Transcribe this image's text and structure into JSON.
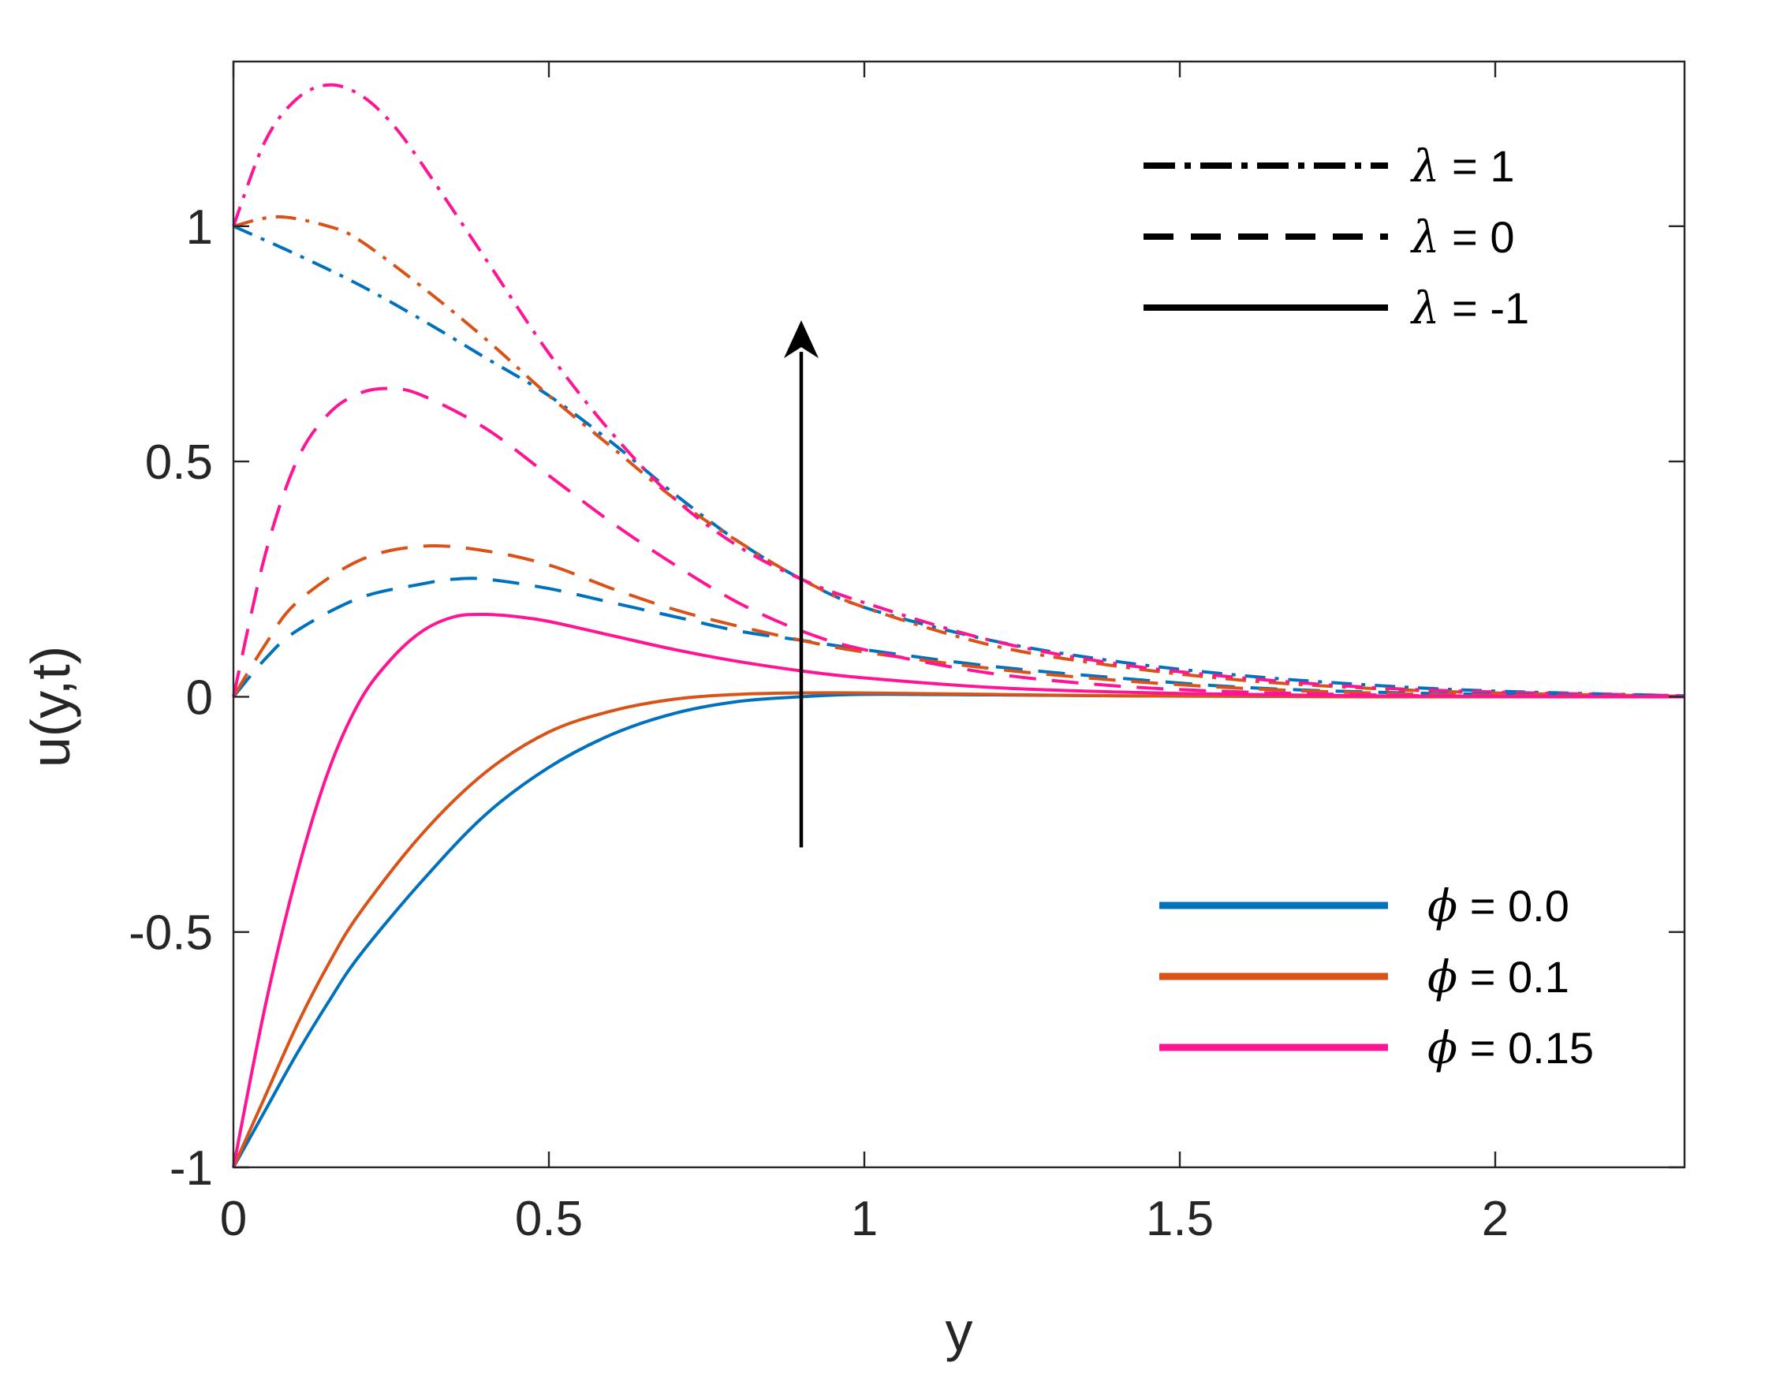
{
  "chart_data": {
    "type": "line",
    "xlabel": "y",
    "ylabel": "u(y,t)",
    "xlim": [
      0,
      2.3
    ],
    "ylim": [
      -1,
      1.35
    ],
    "xticks": [
      0,
      0.5,
      1,
      1.5,
      2
    ],
    "xtick_labels": [
      "0",
      "0.5",
      "1",
      "1.5",
      "2"
    ],
    "yticks": [
      -1,
      -0.5,
      0,
      0.5,
      1
    ],
    "ytick_labels": [
      "-1",
      "-0.5",
      "0",
      "0.5",
      "1"
    ],
    "grid": false,
    "box": true,
    "colors": {
      "phi_0": "#0072BD",
      "phi_01": "#D95319",
      "phi_015": "#FF1493",
      "axis": "#262626",
      "annotation": "#000000"
    },
    "legend_lambda": {
      "placement": "top-right",
      "entries": [
        {
          "label": "λ = 1",
          "symbol": "λ",
          "rest": " = 1",
          "style": "dash-dot"
        },
        {
          "label": "λ = 0",
          "symbol": "λ",
          "rest": " = 0",
          "style": "dashed"
        },
        {
          "label": "λ = -1",
          "symbol": "λ",
          "rest": " = -1",
          "style": "solid"
        }
      ]
    },
    "legend_phi": {
      "placement": "bottom-right",
      "entries": [
        {
          "label": "ϕ = 0.0",
          "symbol": "ϕ",
          "rest": " = 0.0",
          "color": "#0072BD"
        },
        {
          "label": "ϕ = 0.1",
          "symbol": "ϕ",
          "rest": " = 0.1",
          "color": "#D95319"
        },
        {
          "label": "ϕ = 0.15",
          "symbol": "ϕ",
          "rest": " = 0.15",
          "color": "#FF1493"
        }
      ]
    },
    "annotation_arrow": {
      "x": 0.9,
      "y_start": -0.32,
      "y_end": 0.8
    },
    "series": [
      {
        "phi": "0.0",
        "lambda": "1",
        "style": "dash-dot",
        "color": "#0072BD",
        "x": [
          0,
          0.1,
          0.2,
          0.3,
          0.4,
          0.5,
          0.6,
          0.7,
          0.8,
          0.9,
          1.0,
          1.2,
          1.4,
          1.6,
          1.8,
          2.0,
          2.3
        ],
        "y": [
          1.0,
          0.94,
          0.875,
          0.8,
          0.72,
          0.64,
          0.54,
          0.43,
          0.33,
          0.25,
          0.19,
          0.12,
          0.075,
          0.045,
          0.025,
          0.012,
          0.002
        ]
      },
      {
        "phi": "0.1",
        "lambda": "1",
        "style": "dash-dot",
        "color": "#D95319",
        "x": [
          0,
          0.07,
          0.15,
          0.2,
          0.3,
          0.4,
          0.5,
          0.6,
          0.7,
          0.8,
          0.9,
          1.0,
          1.2,
          1.4,
          1.6,
          1.8,
          2.0,
          2.3
        ],
        "y": [
          1.0,
          1.02,
          1.0,
          0.97,
          0.87,
          0.76,
          0.64,
          0.53,
          0.42,
          0.33,
          0.25,
          0.19,
          0.11,
          0.065,
          0.035,
          0.018,
          0.008,
          0.001
        ]
      },
      {
        "phi": "0.15",
        "lambda": "1",
        "style": "dash-dot",
        "color": "#FF1493",
        "x": [
          0,
          0.05,
          0.1,
          0.15,
          0.2,
          0.25,
          0.3,
          0.4,
          0.5,
          0.6,
          0.7,
          0.8,
          0.9,
          1.0,
          1.2,
          1.4,
          1.6,
          1.8,
          2.0,
          2.3
        ],
        "y": [
          1.0,
          1.18,
          1.27,
          1.3,
          1.28,
          1.22,
          1.13,
          0.93,
          0.73,
          0.56,
          0.42,
          0.32,
          0.25,
          0.2,
          0.12,
          0.07,
          0.04,
          0.02,
          0.01,
          0.002
        ]
      },
      {
        "phi": "0.0",
        "lambda": "0",
        "style": "dashed",
        "color": "#0072BD",
        "x": [
          0,
          0.05,
          0.1,
          0.2,
          0.3,
          0.35,
          0.4,
          0.5,
          0.6,
          0.7,
          0.8,
          0.9,
          1.0,
          1.2,
          1.4,
          1.6,
          1.8,
          2.0,
          2.3
        ],
        "y": [
          0,
          0.08,
          0.14,
          0.21,
          0.24,
          0.25,
          0.25,
          0.23,
          0.2,
          0.17,
          0.14,
          0.12,
          0.1,
          0.065,
          0.04,
          0.02,
          0.01,
          0.005,
          0.001
        ]
      },
      {
        "phi": "0.1",
        "lambda": "0",
        "style": "dashed",
        "color": "#D95319",
        "x": [
          0,
          0.05,
          0.1,
          0.2,
          0.3,
          0.4,
          0.5,
          0.6,
          0.7,
          0.8,
          0.9,
          1.0,
          1.2,
          1.4,
          1.6,
          1.8,
          2.0,
          2.3
        ],
        "y": [
          0,
          0.11,
          0.2,
          0.29,
          0.32,
          0.31,
          0.28,
          0.23,
          0.185,
          0.15,
          0.12,
          0.095,
          0.06,
          0.035,
          0.018,
          0.008,
          0.003,
          0.0
        ]
      },
      {
        "phi": "0.15",
        "lambda": "0",
        "style": "dashed",
        "color": "#FF1493",
        "x": [
          0,
          0.05,
          0.1,
          0.15,
          0.2,
          0.25,
          0.3,
          0.4,
          0.5,
          0.6,
          0.7,
          0.8,
          0.9,
          1.0,
          1.2,
          1.4,
          1.6,
          1.8,
          2.0,
          2.3
        ],
        "y": [
          0,
          0.3,
          0.5,
          0.6,
          0.645,
          0.655,
          0.64,
          0.57,
          0.47,
          0.37,
          0.28,
          0.2,
          0.14,
          0.1,
          0.05,
          0.023,
          0.01,
          0.004,
          0.001,
          0.0
        ]
      },
      {
        "phi": "0.0",
        "lambda": "-1",
        "style": "solid",
        "color": "#0072BD",
        "x": [
          0,
          0.05,
          0.1,
          0.15,
          0.2,
          0.3,
          0.4,
          0.5,
          0.6,
          0.7,
          0.8,
          0.9,
          1.0,
          1.2,
          1.4,
          1.6,
          1.8,
          2.0,
          2.3
        ],
        "y": [
          -1.0,
          -0.88,
          -0.76,
          -0.65,
          -0.55,
          -0.39,
          -0.25,
          -0.15,
          -0.08,
          -0.035,
          -0.01,
          0.0,
          0.005,
          0.004,
          0.002,
          0.001,
          0.0,
          0.0,
          0.0
        ]
      },
      {
        "phi": "0.1",
        "lambda": "-1",
        "style": "solid",
        "color": "#D95319",
        "x": [
          0,
          0.05,
          0.1,
          0.15,
          0.2,
          0.3,
          0.4,
          0.5,
          0.6,
          0.7,
          0.8,
          0.9,
          1.0,
          1.2,
          1.4,
          1.6,
          1.8,
          2.0,
          2.3
        ],
        "y": [
          -1.0,
          -0.85,
          -0.7,
          -0.57,
          -0.46,
          -0.29,
          -0.16,
          -0.075,
          -0.03,
          -0.005,
          0.005,
          0.008,
          0.008,
          0.005,
          0.002,
          0.001,
          0.0,
          0.0,
          0.0
        ]
      },
      {
        "phi": "0.15",
        "lambda": "-1",
        "style": "solid",
        "color": "#FF1493",
        "x": [
          0,
          0.05,
          0.1,
          0.15,
          0.2,
          0.25,
          0.3,
          0.35,
          0.4,
          0.45,
          0.5,
          0.6,
          0.7,
          0.8,
          0.9,
          1.0,
          1.2,
          1.4,
          1.6,
          1.8,
          2.0,
          2.3
        ],
        "y": [
          -1.0,
          -0.66,
          -0.38,
          -0.16,
          -0.01,
          0.08,
          0.14,
          0.17,
          0.175,
          0.17,
          0.16,
          0.13,
          0.1,
          0.075,
          0.055,
          0.04,
          0.02,
          0.01,
          0.005,
          0.002,
          0.001,
          0.0
        ]
      }
    ]
  }
}
